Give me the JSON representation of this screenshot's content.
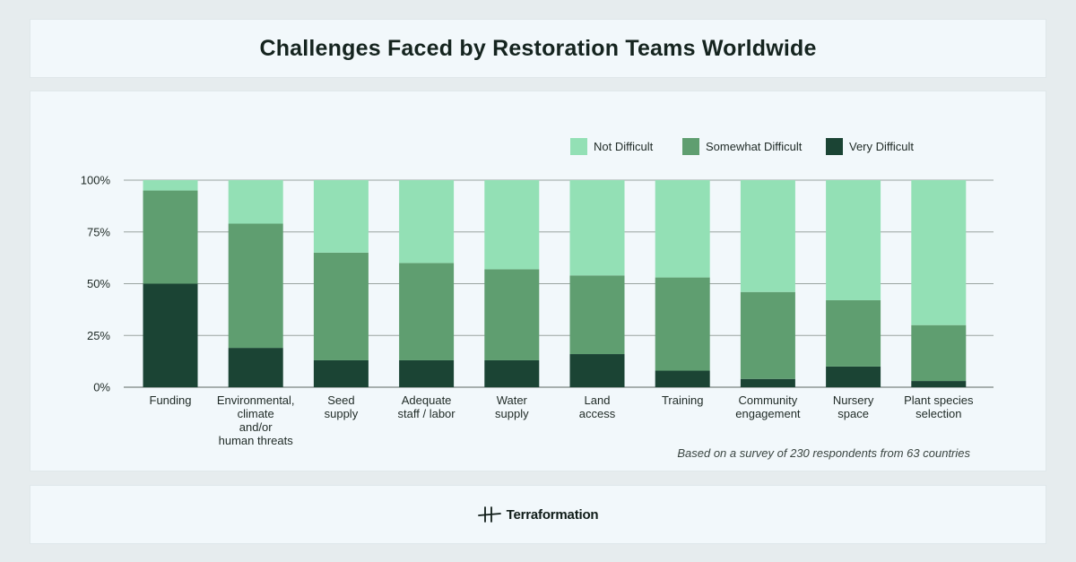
{
  "header": {
    "title": "Challenges Faced by Restoration Teams Worldwide"
  },
  "footer": {
    "note": "Based on a survey of 230 respondents from 63 countries",
    "brand": "Terraformation"
  },
  "colors": {
    "not_difficult": "#93e0b5",
    "somewhat_difficult": "#5f9e70",
    "very_difficult": "#1b4434",
    "grid": "#9aa3a0"
  },
  "chart_data": {
    "type": "bar",
    "stacked": true,
    "categories": [
      [
        "Funding"
      ],
      [
        "Environmental,",
        "climate",
        "and/or",
        "human threats"
      ],
      [
        "Seed",
        "supply"
      ],
      [
        "Adequate",
        "staff / labor"
      ],
      [
        "Water",
        "supply"
      ],
      [
        "Land",
        "access"
      ],
      [
        "Training"
      ],
      [
        "Community",
        "engagement"
      ],
      [
        "Nursery",
        "space"
      ],
      [
        "Plant species",
        "selection"
      ]
    ],
    "series": [
      {
        "name": "Very Difficult",
        "values": [
          50,
          19,
          13,
          13,
          13,
          16,
          8,
          4,
          10,
          3
        ]
      },
      {
        "name": "Somewhat Difficult",
        "values": [
          45,
          60,
          52,
          47,
          44,
          38,
          45,
          42,
          32,
          27
        ]
      },
      {
        "name": "Not Difficult",
        "values": [
          5,
          21,
          35,
          40,
          43,
          46,
          47,
          54,
          58,
          70
        ]
      }
    ],
    "legend_order": [
      "Not Difficult",
      "Somewhat Difficult",
      "Very Difficult"
    ],
    "yticks": [
      "0%",
      "25%",
      "50%",
      "75%",
      "100%"
    ],
    "ylim": [
      0,
      100
    ],
    "title": "",
    "xlabel": "",
    "ylabel": "",
    "grid": true,
    "legend_position": "top-right"
  }
}
